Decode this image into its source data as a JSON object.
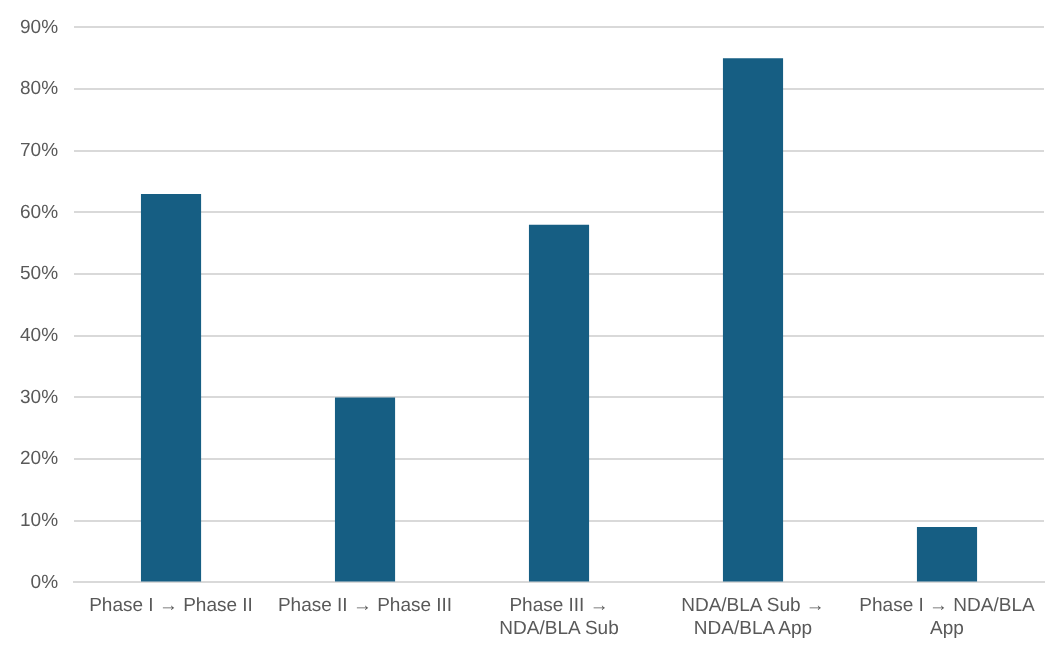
{
  "chart_data": {
    "type": "bar",
    "categories": [
      "Phase I → Phase II",
      "Phase II → Phase III",
      "Phase III → NDA/BLA Sub",
      "NDA/BLA Sub → NDA/BLA App",
      "Phase I → NDA/BLA App"
    ],
    "values": [
      63,
      30,
      58,
      85,
      9
    ],
    "color": "#165e83",
    "ylim": [
      0,
      90
    ],
    "yticks": [
      {
        "value": 0,
        "label": "0%"
      },
      {
        "value": 10,
        "label": "10%"
      },
      {
        "value": 20,
        "label": "20%"
      },
      {
        "value": 30,
        "label": "30%"
      },
      {
        "value": 40,
        "label": "40%"
      },
      {
        "value": 50,
        "label": "50%"
      },
      {
        "value": 60,
        "label": "60%"
      },
      {
        "value": 70,
        "label": "70%"
      },
      {
        "value": 80,
        "label": "80%"
      },
      {
        "value": 90,
        "label": "90%"
      }
    ],
    "grid": "y",
    "legend": false
  }
}
